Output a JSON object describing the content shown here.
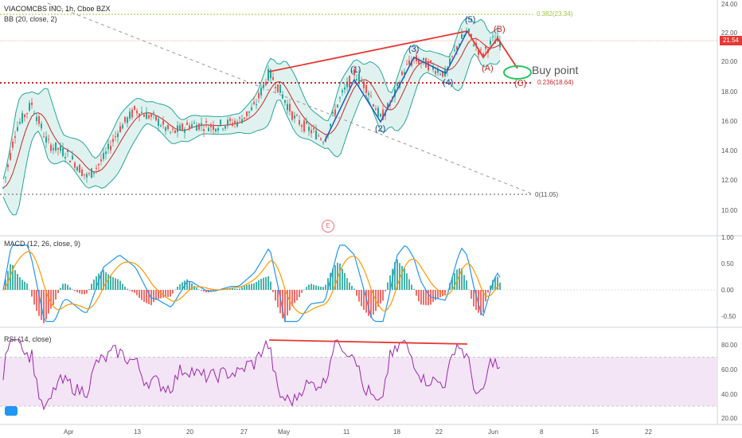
{
  "header": {
    "title": "VIACOMCBS INC, 1h, Cboe BZX",
    "bb_label": "BB (20, close, 2)",
    "macd_label": "MACD (12, 26, close, 9)",
    "rsi_label": "RSI (14, close)"
  },
  "price_tag": "21.54",
  "annotations": {
    "buy_point": "Buy point",
    "event_badge": "E",
    "waves": {
      "w1": "(1)",
      "w2": "(2)",
      "w3": "(3)",
      "w4": "(4)",
      "w5": "(5)",
      "wA": "(A)",
      "wB": "(B)",
      "wC": "(C)"
    },
    "fib_0382": "0.382(23.34)",
    "fib_0236": "0.236(18.64)",
    "fib_0": "0(11.05)"
  },
  "axes": {
    "price_ticks": [
      "24.00",
      "22.00",
      "20.00",
      "18.00",
      "16.00",
      "14.00",
      "12.00",
      "10.00"
    ],
    "macd_ticks": [
      "1.00",
      "0.50",
      "0.00",
      "-0.50"
    ],
    "rsi_ticks": [
      "80.00",
      "60.00",
      "40.00",
      "20.00"
    ],
    "time_ticks": [
      "Apr",
      "13",
      "20",
      "27",
      "May",
      "11",
      "18",
      "22",
      "Jun",
      "8",
      "15",
      "22"
    ]
  },
  "colors": {
    "bb_fill": "#e0f2ef",
    "bb_band": "#26a69a",
    "basis": "#c62828",
    "candle_up": "#26a69a",
    "candle_down": "#ef5350",
    "macd_line": "#2196f3",
    "signal_line": "#ff9800",
    "rsi_line": "#9c27b0",
    "rsi_band": "#f3e5f5",
    "trend_red": "#e53935",
    "fib_green": "#9bc53d"
  }
}
